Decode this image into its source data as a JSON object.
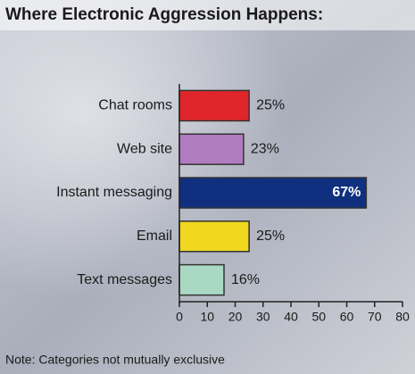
{
  "chart_data": {
    "type": "bar",
    "orientation": "horizontal",
    "title": "Where Electronic Aggression Happens:",
    "note": "Note: Categories not mutually exclusive",
    "categories": [
      "Chat rooms",
      "Web site",
      "Instant messaging",
      "Email",
      "Text messages"
    ],
    "values": [
      25,
      23,
      67,
      25,
      16
    ],
    "value_labels": [
      "25%",
      "23%",
      "67%",
      "25%",
      "16%"
    ],
    "colors": [
      "#e0262a",
      "#b07cc0",
      "#10307f",
      "#efd81e",
      "#a9d9c2"
    ],
    "xlim": [
      0,
      80
    ],
    "xticks": [
      0,
      10,
      20,
      30,
      40,
      50,
      60,
      70,
      80
    ]
  }
}
